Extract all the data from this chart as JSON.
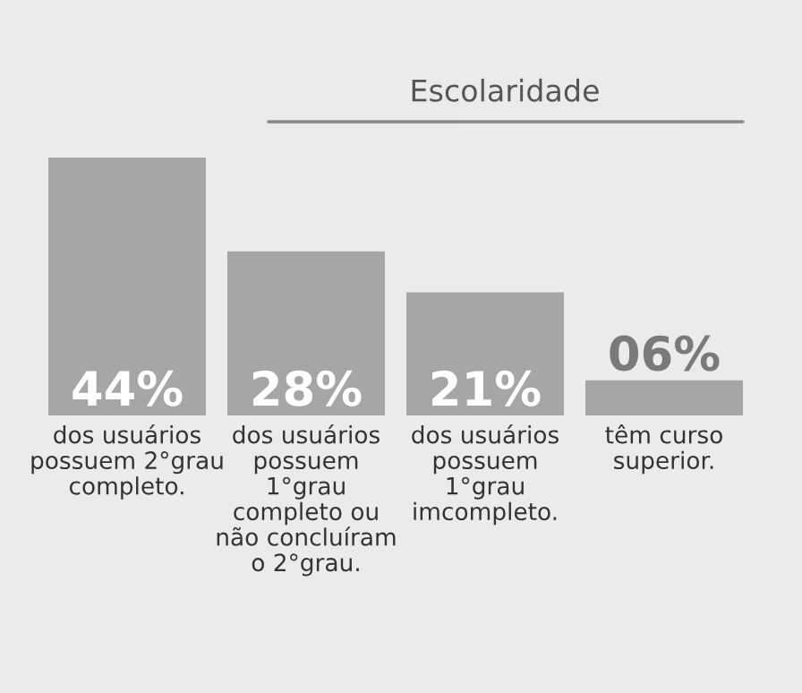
{
  "chart_data": {
    "type": "bar",
    "title": "Escolaridade",
    "categories": [
      "dos usuários\npossuem 2°grau\ncompleto.",
      "dos usuários\npossuem\n1°grau\ncompleto ou\nnão concluíram\no 2°grau.",
      "dos usuários\npossuem\n1°grau\nimcompleto.",
      "têm curso\nsuperior."
    ],
    "values": [
      44,
      28,
      21,
      6
    ],
    "value_labels": [
      "44%",
      "28%",
      "21%",
      "06%"
    ],
    "color": "#a6a6a6"
  }
}
